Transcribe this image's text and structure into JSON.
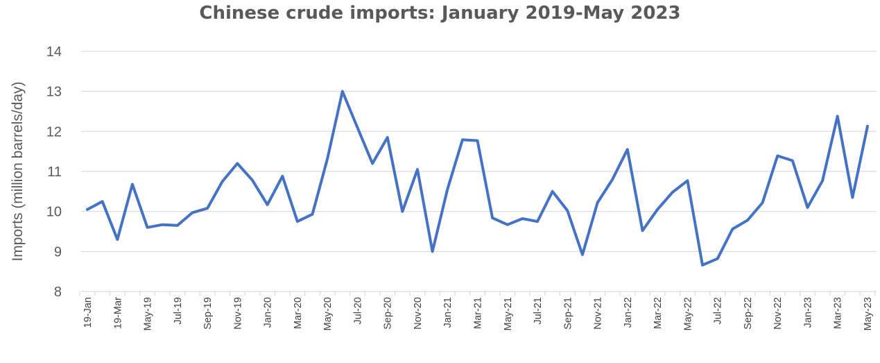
{
  "chart_data": {
    "type": "line",
    "title": "Chinese crude imports: January 2019-May 2023",
    "ylabel": "Imports (million barrels/day)",
    "xlabel": "",
    "ylim": [
      8,
      14
    ],
    "yticks": [
      8,
      9,
      10,
      11,
      12,
      13,
      14
    ],
    "grid": true,
    "legend": "none",
    "line_color": "#4472C4",
    "x_labels": [
      "19-Jan",
      "19-Mar",
      "May-19",
      "Jul-19",
      "Sep-19",
      "Nov-19",
      "Jan-20",
      "Mar-20",
      "May-20",
      "Jul-20",
      "Sep-20",
      "Nov-20",
      "Jan-21",
      "Mar-21",
      "May-21",
      "Jul-21",
      "Sep-21",
      "Nov-21",
      "Jan-22",
      "Mar-22",
      "May-22",
      "Jul-22",
      "Sep-22",
      "Nov-22",
      "Jan-23",
      "Mar-23",
      "May-23"
    ],
    "series": [
      {
        "values": [
          10.05,
          10.25,
          9.3,
          10.68,
          9.6,
          9.67,
          9.65,
          9.97,
          10.08,
          10.75,
          11.2,
          10.78,
          10.17,
          10.88,
          9.75,
          9.93,
          11.32,
          13.0,
          12.1,
          11.2,
          11.85,
          10.0,
          11.05,
          9.0,
          10.55,
          11.79,
          11.77,
          9.84,
          9.67,
          9.82,
          9.75,
          10.5,
          10.02,
          8.92,
          10.22,
          10.8,
          11.55,
          9.52,
          10.05,
          10.48,
          10.77,
          8.66,
          8.82,
          9.56,
          9.78,
          10.22,
          11.39,
          11.27,
          10.1,
          10.77,
          12.38,
          10.35,
          12.13
        ]
      }
    ]
  }
}
